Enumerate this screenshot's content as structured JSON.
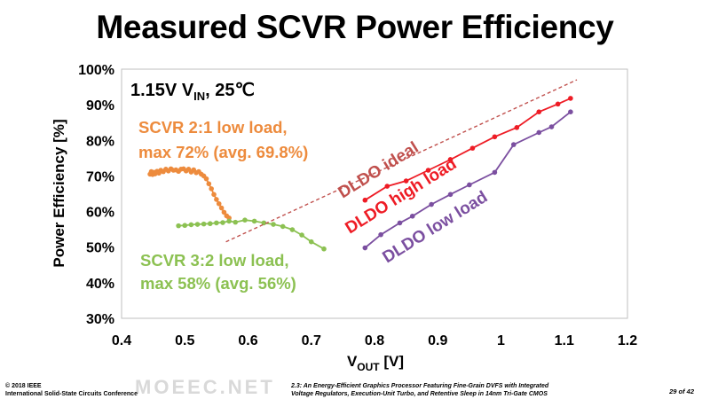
{
  "slide": {
    "title": "Measured SCVR Power Efficiency"
  },
  "chart_data": {
    "type": "line",
    "xlabel_main": "V",
    "xlabel_sub": "OUT",
    "xlabel_unit": " [V]",
    "ylabel": "Power Efficiency [%]",
    "xlim": [
      0.4,
      1.2
    ],
    "ylim": [
      30,
      100
    ],
    "xticks": [
      0.4,
      0.5,
      0.6,
      0.7,
      0.8,
      0.9,
      1,
      1.1,
      1.2
    ],
    "xtick_labels": [
      "0.4",
      "0.5",
      "0.6",
      "0.7",
      "0.8",
      "0.9",
      "1",
      "1.1",
      "1.2"
    ],
    "yticks": [
      30,
      40,
      50,
      60,
      70,
      80,
      90,
      100
    ],
    "ytick_labels": [
      "30%",
      "40%",
      "50%",
      "60%",
      "70%",
      "80%",
      "90%",
      "100%"
    ],
    "grid": false,
    "condition": {
      "text1": "1.15V V",
      "sub": "IN",
      "text2": ", 25℃"
    },
    "series": [
      {
        "name": "SCVR 2:1 low load",
        "color": "#ed8b3d",
        "x": [
          0.445,
          0.447,
          0.449,
          0.451,
          0.453,
          0.456,
          0.459,
          0.462,
          0.466,
          0.47,
          0.474,
          0.478,
          0.482,
          0.486,
          0.49,
          0.494,
          0.498,
          0.502,
          0.506,
          0.51,
          0.514,
          0.518,
          0.522,
          0.526,
          0.53,
          0.534,
          0.538,
          0.542,
          0.546,
          0.55,
          0.554,
          0.558,
          0.562,
          0.566,
          0.57
        ],
        "values": [
          70.5,
          71.2,
          70.4,
          71.0,
          70.6,
          71.3,
          70.8,
          71.6,
          71.2,
          71.9,
          71.4,
          72.0,
          71.6,
          71.7,
          71.3,
          71.9,
          72.0,
          71.4,
          71.9,
          71.1,
          71.7,
          70.9,
          71.2,
          70.5,
          70.0,
          69.2,
          67.8,
          66.4,
          64.8,
          63.4,
          62.2,
          61.0,
          59.8,
          58.8,
          58.2
        ]
      },
      {
        "name": "SCVR 3:2 low load",
        "color": "#8cc152",
        "x": [
          0.49,
          0.5,
          0.51,
          0.52,
          0.53,
          0.54,
          0.55,
          0.56,
          0.57,
          0.58,
          0.595,
          0.61,
          0.625,
          0.64,
          0.655,
          0.67,
          0.685,
          0.7,
          0.72
        ],
        "values": [
          56.0,
          56.1,
          56.3,
          56.4,
          56.5,
          56.6,
          56.8,
          56.9,
          57.3,
          57.0,
          57.6,
          57.3,
          56.8,
          56.4,
          55.8,
          54.9,
          53.4,
          51.5,
          49.5
        ]
      },
      {
        "name": "DLDO ideal",
        "color": "#c0504d",
        "dashed": true,
        "x": [
          0.565,
          1.12
        ],
        "values": [
          51.5,
          97.0
        ]
      },
      {
        "name": "DLDO high load",
        "color": "#ee1c25",
        "x": [
          0.785,
          0.82,
          0.85,
          0.885,
          0.92,
          0.955,
          0.99,
          1.025,
          1.06,
          1.09,
          1.11
        ],
        "values": [
          63.2,
          67.1,
          68.6,
          71.6,
          74.6,
          77.8,
          81.0,
          83.6,
          88.0,
          90.2,
          91.8
        ]
      },
      {
        "name": "DLDO low load",
        "color": "#7b4fa0",
        "x": [
          0.785,
          0.81,
          0.84,
          0.86,
          0.89,
          0.92,
          0.95,
          0.99,
          1.02,
          1.06,
          1.08,
          1.11
        ],
        "values": [
          49.8,
          53.5,
          56.8,
          58.7,
          62.0,
          64.8,
          67.5,
          71.0,
          78.8,
          82.2,
          83.8,
          88.0
        ]
      }
    ],
    "annotations": {
      "scvr21_line1": "SCVR 2:1 low load,",
      "scvr21_line2": "max 72% (avg. 69.8%)",
      "scvr32_line1": "SCVR 3:2 low load,",
      "scvr32_line2": "max 58% (avg. 56%)",
      "dldo_ideal": "DLDO ideal",
      "dldo_high": "DLDO high load",
      "dldo_low": "DLDO low load"
    }
  },
  "footer": {
    "copyright_line1": "© 2018 IEEE",
    "copyright_line2": "International Solid-State Circuits Conference",
    "paper_line1": "2.3: An Energy-Efficient Graphics Processor Featuring Fine-Grain DVFS with Integrated",
    "paper_line2": "Voltage Regulators, Execution-Unit Turbo, and Retentive Sleep in 14nm Tri-Gate CMOS",
    "page": "29 of 42",
    "watermark": "MOEEC.NET"
  }
}
